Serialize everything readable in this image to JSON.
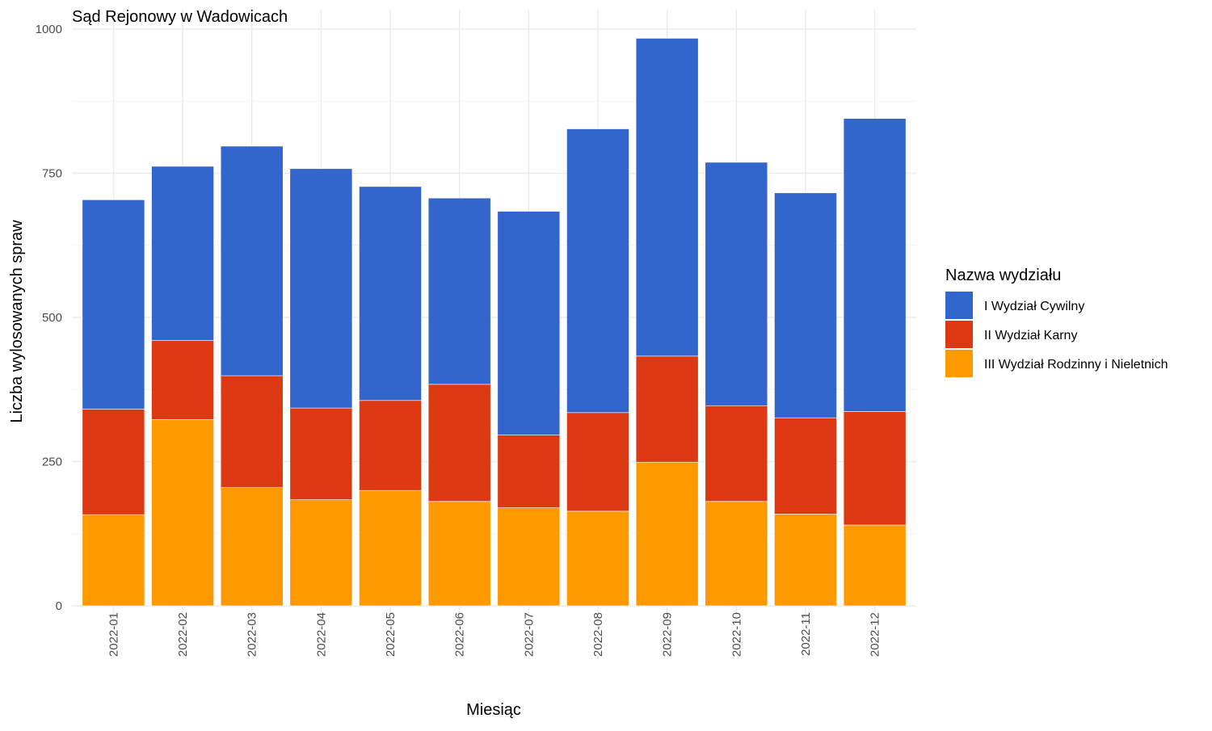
{
  "chart_data": {
    "type": "bar",
    "stacked": true,
    "title": "Sąd Rejonowy w Wadowicach",
    "xlabel": "Miesiąc",
    "ylabel": "Liczba wylosowanych spraw",
    "ylim": [
      0,
      1000
    ],
    "yticks": [
      "0",
      "250",
      "500",
      "750",
      "1000"
    ],
    "grid": true,
    "legend_title": "Nazwa wydziału",
    "legend_position": "right",
    "categories": [
      "2022-01",
      "2022-02",
      "2022-03",
      "2022-04",
      "2022-05",
      "2022-06",
      "2022-07",
      "2022-08",
      "2022-09",
      "2022-10",
      "2022-11",
      "2022-12"
    ],
    "series": [
      {
        "name": "III Wydział Rodzinny i Nieletnich",
        "color": "#ff9900",
        "values": [
          158,
          323,
          205,
          184,
          200,
          181,
          170,
          164,
          249,
          181,
          159,
          140
        ]
      },
      {
        "name": "II Wydział Karny",
        "color": "#dc3912",
        "values": [
          183,
          137,
          194,
          159,
          156,
          203,
          126,
          171,
          184,
          166,
          167,
          197
        ]
      },
      {
        "name": "I Wydział Cywilny",
        "color": "#3366cc",
        "values": [
          363,
          302,
          398,
          415,
          371,
          323,
          388,
          492,
          551,
          422,
          390,
          508
        ]
      }
    ],
    "legend_order": [
      "I Wydział Cywilny",
      "II Wydział Karny",
      "III Wydział Rodzinny i Nieletnich"
    ]
  }
}
